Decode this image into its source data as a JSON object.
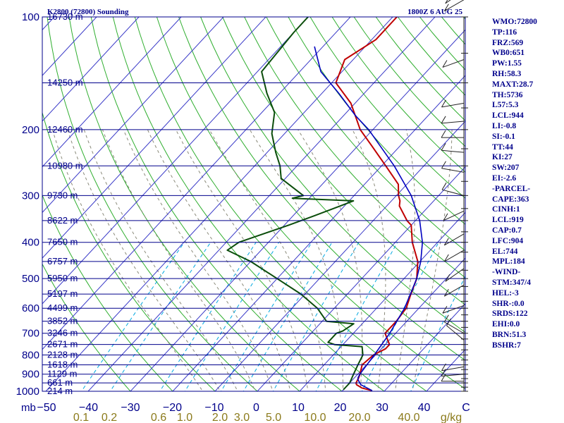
{
  "header": {
    "station": "K2800 (72800) Sounding",
    "time": "1800Z  6 AUG 25"
  },
  "colors": {
    "isobar": "#00008b",
    "isotherm": "#3a3ac8",
    "dry_adiabat": "#2fae2f",
    "moist_adiabat": "#8a8a7a",
    "mixing_ratio": "#00a8e0",
    "temperature": "#c00000",
    "dewpoint": "#0b4d0b",
    "parcel": "#0000c0",
    "wind": "#222222"
  },
  "chart_data": {
    "type": "line",
    "title": "",
    "xlabel": "C",
    "ylabel": "mb",
    "y_scale": "log",
    "ylim": [
      1000,
      100
    ],
    "xlim": [
      -50,
      50
    ],
    "pressure_ticks": [
      "100",
      "200",
      "300",
      "400",
      "500",
      "600",
      "700",
      "800",
      "900",
      "1000"
    ],
    "temp_ticks": [
      "−50",
      "−40",
      "−30",
      "−20",
      "−10",
      "0",
      "10",
      "20",
      "30",
      "40",
      "C"
    ],
    "mixing_ratio_label": "g/kg",
    "mixing_ratio_ticks": [
      "0.1",
      "0.2",
      "0.6",
      "1.0",
      "2.0",
      "3.0",
      "5.0",
      "10.0",
      "20.0",
      "40.0"
    ],
    "axis_unit": "mb",
    "height_labels": [
      {
        "p": 100,
        "label": "16730 m"
      },
      {
        "p": 150,
        "label": "14250 m"
      },
      {
        "p": 200,
        "label": "12460 m"
      },
      {
        "p": 250,
        "label": "10980 m"
      },
      {
        "p": 300,
        "label": "9730 m"
      },
      {
        "p": 350,
        "label": "8622 m"
      },
      {
        "p": 400,
        "label": "7650 m"
      },
      {
        "p": 450,
        "label": "6757 m"
      },
      {
        "p": 500,
        "label": "5950 m"
      },
      {
        "p": 550,
        "label": "5197 m"
      },
      {
        "p": 600,
        "label": "4499 m"
      },
      {
        "p": 650,
        "label": "3852 m"
      },
      {
        "p": 700,
        "label": "3246 m"
      },
      {
        "p": 750,
        "label": "2671 m"
      },
      {
        "p": 800,
        "label": "2128 m"
      },
      {
        "p": 850,
        "label": "1618 m"
      },
      {
        "p": 900,
        "label": "1129 m"
      },
      {
        "p": 950,
        "label": "661 m"
      },
      {
        "p": 1000,
        "label": "214 m"
      }
    ],
    "series": [
      {
        "key": "temperature",
        "points": [
          [
            996,
            27
          ],
          [
            980,
            24
          ],
          [
            960,
            22
          ],
          [
            950,
            21.5
          ],
          [
            920,
            21
          ],
          [
            900,
            20.5
          ],
          [
            850,
            19
          ],
          [
            800,
            19.5
          ],
          [
            770,
            21
          ],
          [
            750,
            21
          ],
          [
            700,
            17.5
          ],
          [
            650,
            17.5
          ],
          [
            600,
            17
          ],
          [
            550,
            15
          ],
          [
            500,
            13
          ],
          [
            450,
            9.5
          ],
          [
            400,
            4
          ],
          [
            360,
            0
          ],
          [
            350,
            -2
          ],
          [
            320,
            -7
          ],
          [
            310,
            -8
          ],
          [
            300,
            -9.5
          ],
          [
            280,
            -12
          ],
          [
            250,
            -19
          ],
          [
            220,
            -27
          ],
          [
            200,
            -33
          ],
          [
            170,
            -41
          ],
          [
            150,
            -49
          ],
          [
            130,
            -52
          ],
          [
            115,
            -49
          ],
          [
            100,
            -49
          ]
        ]
      },
      {
        "key": "dewpoint",
        "points": [
          [
            990,
            20
          ],
          [
            970,
            20
          ],
          [
            950,
            20
          ],
          [
            900,
            19
          ],
          [
            850,
            18
          ],
          [
            800,
            17
          ],
          [
            760,
            15
          ],
          [
            750,
            8
          ],
          [
            740,
            6
          ],
          [
            700,
            6
          ],
          [
            690,
            7
          ],
          [
            660,
            8
          ],
          [
            650,
            1
          ],
          [
            600,
            -4
          ],
          [
            550,
            -11
          ],
          [
            500,
            -20
          ],
          [
            450,
            -30
          ],
          [
            420,
            -38
          ],
          [
            400,
            -37
          ],
          [
            360,
            -29
          ],
          [
            340,
            -25
          ],
          [
            320,
            -21
          ],
          [
            310,
            -19
          ],
          [
            305,
            -34
          ],
          [
            300,
            -32
          ],
          [
            270,
            -41
          ],
          [
            250,
            -44
          ],
          [
            230,
            -48
          ],
          [
            205,
            -53
          ],
          [
            180,
            -57
          ],
          [
            160,
            -63
          ],
          [
            140,
            -69
          ],
          [
            110,
            -70
          ],
          [
            100,
            -70
          ]
        ]
      },
      {
        "key": "parcel",
        "points": [
          [
            996,
            27
          ],
          [
            960,
            23
          ],
          [
            930,
            21.2
          ],
          [
            919,
            20.8
          ],
          [
            900,
            20.5
          ],
          [
            800,
            19.7
          ],
          [
            700,
            18.6
          ],
          [
            600,
            16.6
          ],
          [
            500,
            13
          ],
          [
            450,
            10.2
          ],
          [
            400,
            6.4
          ],
          [
            350,
            1
          ],
          [
            300,
            -6.5
          ],
          [
            250,
            -17
          ],
          [
            200,
            -31
          ],
          [
            184,
            -37
          ],
          [
            160,
            -46
          ],
          [
            140,
            -55
          ],
          [
            120,
            -62
          ]
        ]
      }
    ]
  },
  "indices": [
    "WMO:72800",
    "TP:116",
    "FRZ:569",
    "WB0:651",
    "PW:1.55",
    "RH:58.3",
    "MAXT:28.7",
    "TH:5736",
    "L57:5.3",
    "LCL:944",
    "LI:-0.8",
    "SI:-0.1",
    "TT:44",
    "KI:27",
    "SW:207",
    "EI:-2.6",
    "-PARCEL-",
    "CAPE:363",
    "CINH:1",
    "LCL:919",
    "CAP:0.7",
    "LFC:904",
    "EL:744",
    "MPL:184",
    "-WIND-",
    "STM:347/4",
    "HEL:-3",
    "SHR-:0.0",
    "SRDS:122",
    "EHI:0.0",
    "BRN:51.3",
    "BSHR:7"
  ]
}
